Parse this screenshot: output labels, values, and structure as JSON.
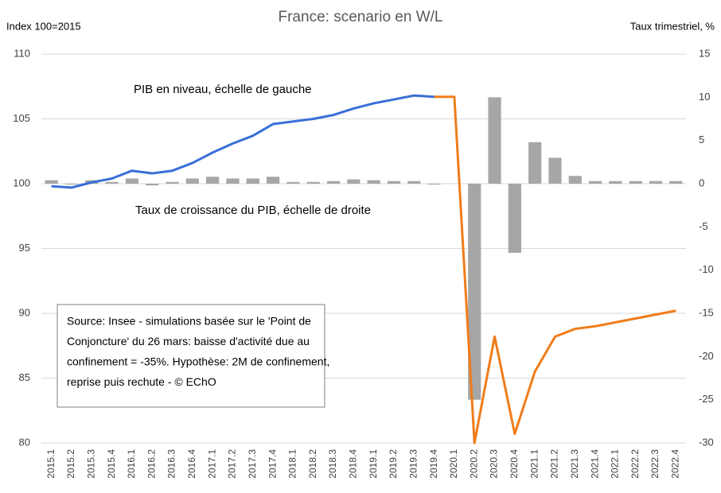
{
  "chart_data": {
    "type": "combo",
    "title": "France: scenario en W/L",
    "y_label": "Index 100=2015",
    "y2_label": "Taux trimestriel, %",
    "annotations": [
      "PIB en niveau, échelle de gauche",
      "Taux de croissance du PIB, échelle de droite"
    ],
    "source_lines": [
      "Source: Insee - simulations basée sur le 'Point de",
      "Conjoncture'  du 26 mars: baisse d'activité due au",
      "confinement = -35%. Hypothèse: 2M de confinement,",
      "reprise puis rechute - © EChO"
    ],
    "categories": [
      "2015.1",
      "2015.2",
      "2015.3",
      "2015.4",
      "2016.1",
      "2016.2",
      "2016.3",
      "2016.4",
      "2017.1",
      "2017.2",
      "2017.3",
      "2017.4",
      "2018.1",
      "2018.2",
      "2018.3",
      "2018.4",
      "2019.1",
      "2019.2",
      "2019.3",
      "2019.4",
      "2020.1",
      "2020.2",
      "2020.3",
      "2020.4",
      "2021.1",
      "2021.2",
      "2021.3",
      "2021.4",
      "2022.1",
      "2022.2",
      "2022.3",
      "2022.4"
    ],
    "series": [
      {
        "type": "bar",
        "axis": "y2",
        "color": "#a6a6a6",
        "values": [
          0.4,
          -0.1,
          0.4,
          0.2,
          0.6,
          -0.2,
          0.2,
          0.6,
          0.8,
          0.6,
          0.6,
          0.8,
          0.2,
          0.2,
          0.3,
          0.5,
          0.4,
          0.3,
          0.3,
          -0.1,
          0,
          -25,
          10,
          -8,
          4.8,
          3,
          0.9,
          0.3,
          0.3,
          0.3,
          0.3,
          0.3
        ]
      },
      {
        "type": "line",
        "axis": "y",
        "color": "#3a6fd8",
        "values": [
          99.8,
          99.7,
          100.1,
          100.4,
          101.0,
          100.8,
          101.0,
          101.6,
          102.4,
          103.1,
          103.7,
          104.6,
          104.8,
          105.0,
          105.3,
          105.8,
          106.2,
          106.5,
          106.8,
          106.7,
          null,
          null,
          null,
          null,
          null,
          null,
          null,
          null,
          null,
          null,
          null,
          null
        ]
      },
      {
        "type": "line",
        "axis": "y",
        "color": "#f07c1a",
        "values": [
          null,
          null,
          null,
          null,
          null,
          null,
          null,
          null,
          null,
          null,
          null,
          null,
          null,
          null,
          null,
          null,
          null,
          null,
          null,
          106.7,
          106.7,
          80.0,
          88.2,
          80.7,
          85.5,
          88.2,
          88.8,
          89.0,
          89.3,
          89.6,
          89.9,
          90.2
        ]
      }
    ],
    "ylim": [
      80,
      110
    ],
    "yticks": [
      80,
      85,
      90,
      95,
      100,
      105,
      110
    ],
    "y2lim": [
      -30,
      15
    ],
    "y2ticks": [
      -30,
      -25,
      -20,
      -15,
      -10,
      -5,
      0,
      5,
      10,
      15
    ],
    "grid": true
  }
}
